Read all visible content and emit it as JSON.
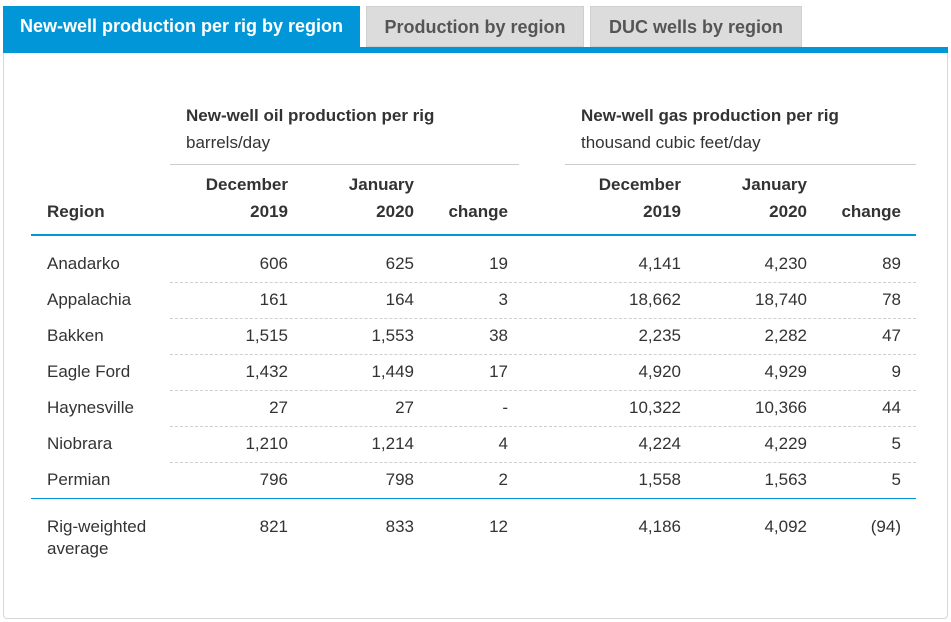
{
  "tabs": [
    {
      "label": "New-well production per rig by region"
    },
    {
      "label": "Production by region"
    },
    {
      "label": "DUC wells by region"
    }
  ],
  "colors": {
    "accent": "#0096d7",
    "inactive_tab": "#dcdcdc"
  },
  "table": {
    "oil_group": {
      "title": "New-well oil production per rig",
      "unit": "barrels/day"
    },
    "gas_group": {
      "title": "New-well gas production per rig",
      "unit": "thousand cubic feet/day"
    },
    "region_header": "Region",
    "headers": {
      "dec_top": "December",
      "dec_bottom": "2019",
      "jan_top": "January",
      "jan_bottom": "2020",
      "change": "change"
    },
    "rows": [
      {
        "region": "Anadarko",
        "oil": [
          "606",
          "625",
          "19"
        ],
        "gas": [
          "4,141",
          "4,230",
          "89"
        ]
      },
      {
        "region": "Appalachia",
        "oil": [
          "161",
          "164",
          "3"
        ],
        "gas": [
          "18,662",
          "18,740",
          "78"
        ]
      },
      {
        "region": "Bakken",
        "oil": [
          "1,515",
          "1,553",
          "38"
        ],
        "gas": [
          "2,235",
          "2,282",
          "47"
        ]
      },
      {
        "region": "Eagle Ford",
        "oil": [
          "1,432",
          "1,449",
          "17"
        ],
        "gas": [
          "4,920",
          "4,929",
          "9"
        ]
      },
      {
        "region": "Haynesville",
        "oil": [
          "27",
          "27",
          "-"
        ],
        "gas": [
          "10,322",
          "10,366",
          "44"
        ]
      },
      {
        "region": "Niobrara",
        "oil": [
          "1,210",
          "1,214",
          "4"
        ],
        "gas": [
          "4,224",
          "4,229",
          "5"
        ]
      },
      {
        "region": "Permian",
        "oil": [
          "796",
          "798",
          "2"
        ],
        "gas": [
          "1,558",
          "1,563",
          "5"
        ]
      }
    ],
    "summary": {
      "region_line1": "Rig-weighted",
      "region_line2": "average",
      "oil": [
        "821",
        "833",
        "12"
      ],
      "gas": [
        "4,186",
        "4,092",
        "(94)"
      ]
    }
  }
}
